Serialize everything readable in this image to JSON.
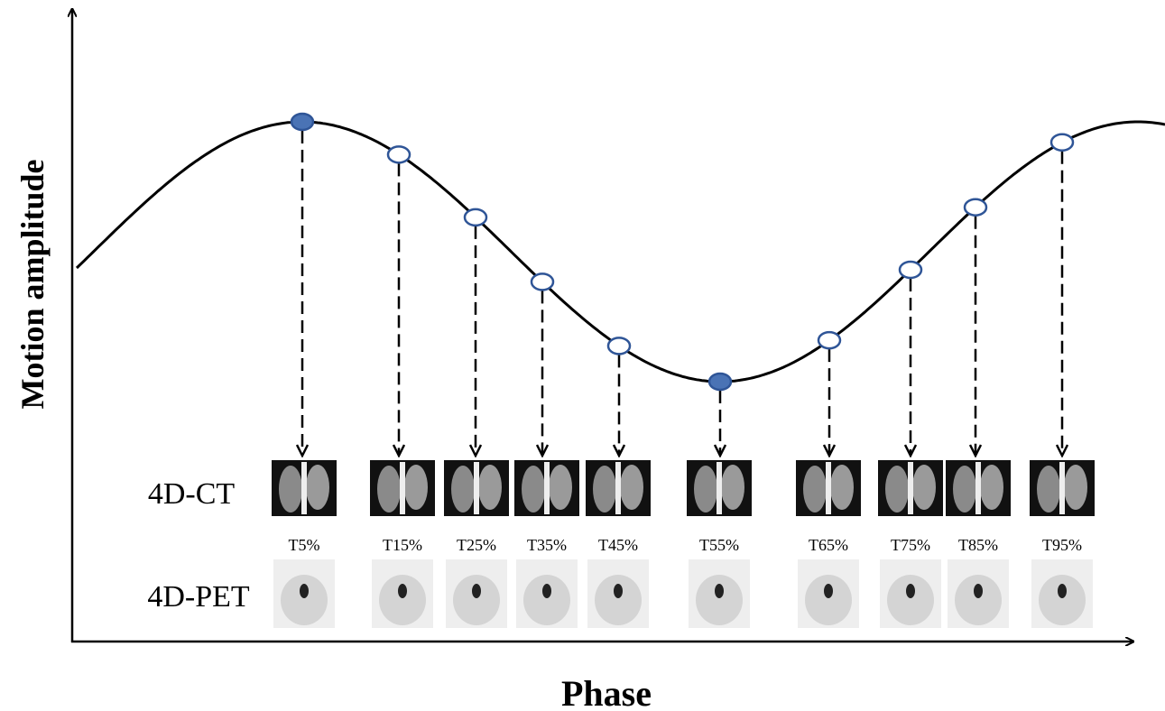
{
  "axes": {
    "y_label": "Motion amplitude",
    "x_label": "Phase"
  },
  "rows": [
    "4D-CT",
    "4D-PET"
  ],
  "phases": [
    "T5%",
    "T15%",
    "T25%",
    "T35%",
    "T45%",
    "T55%",
    "T65%",
    "T75%",
    "T85%",
    "T95%"
  ]
}
